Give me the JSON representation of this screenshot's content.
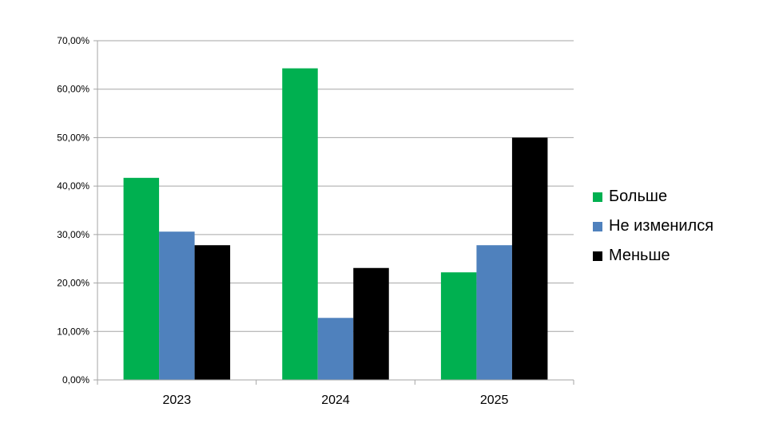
{
  "chart_data": {
    "type": "bar",
    "categories": [
      "2023",
      "2024",
      "2025"
    ],
    "series": [
      {
        "name": "Больше",
        "values": [
          41.7,
          64.3,
          22.2
        ],
        "color": "#00b050"
      },
      {
        "name": "Не изменился",
        "values": [
          30.6,
          12.8,
          27.8
        ],
        "color": "#4f81bd"
      },
      {
        "name": "Меньше",
        "values": [
          27.8,
          23.1,
          50.0
        ],
        "color": "#000000"
      }
    ],
    "ylim": [
      0,
      70
    ],
    "yticks": [
      "0,00%",
      "10,00%",
      "20,00%",
      "30,00%",
      "40,00%",
      "50,00%",
      "60,00%",
      "70,00%"
    ],
    "ytick_values": [
      0,
      10,
      20,
      30,
      40,
      50,
      60,
      70
    ],
    "grid": true,
    "legend_position": "right",
    "gridline_color": "#a6a6a6"
  }
}
